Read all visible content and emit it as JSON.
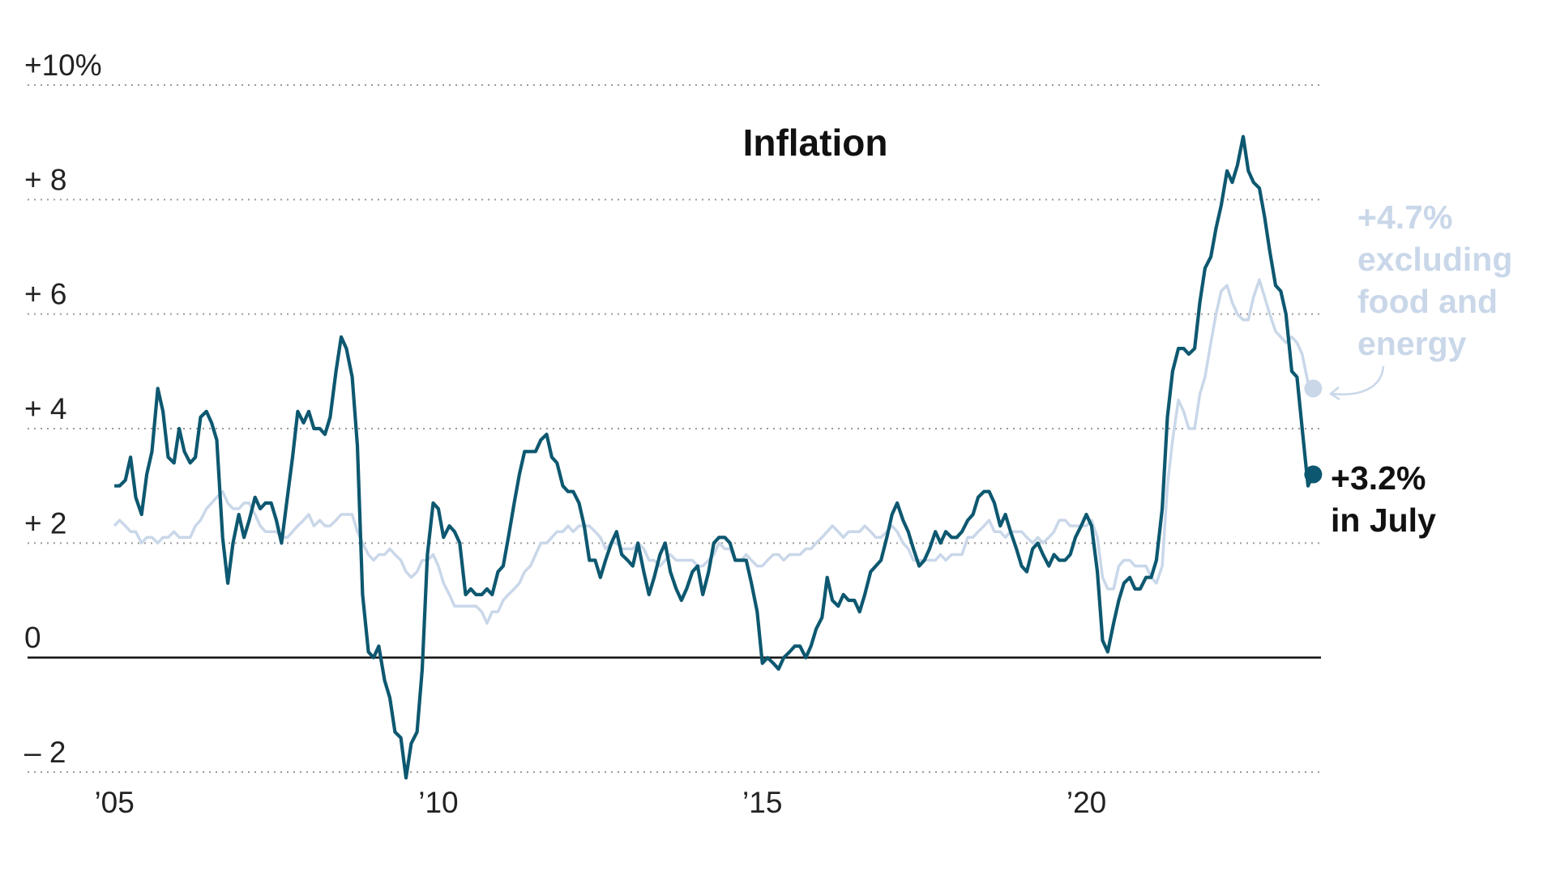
{
  "chart_data": {
    "type": "line",
    "title": "Inflation",
    "xlim": [
      2003.66,
      2023.62
    ],
    "xticks": [
      {
        "value": 2005,
        "label": "’05"
      },
      {
        "value": 2010,
        "label": "’10"
      },
      {
        "value": 2015,
        "label": "’15"
      },
      {
        "value": 2020,
        "label": "’20"
      }
    ],
    "ylim": [
      -2,
      10
    ],
    "yticks": [
      {
        "value": 10,
        "label": "+10%"
      },
      {
        "value": 8,
        "label": "+ 8"
      },
      {
        "value": 6,
        "label": "+ 6"
      },
      {
        "value": 4,
        "label": "+ 4"
      },
      {
        "value": 2,
        "label": "+ 2"
      },
      0,
      {
        "value": -2,
        "label": "– 2"
      }
    ],
    "grid": true,
    "x": [
      2005,
      2005.08,
      2005.17,
      2005.25,
      2005.33,
      2005.42,
      2005.5,
      2005.58,
      2005.67,
      2005.75,
      2005.83,
      2005.92,
      2006,
      2006.08,
      2006.17,
      2006.25,
      2006.33,
      2006.42,
      2006.5,
      2006.58,
      2006.67,
      2006.75,
      2006.83,
      2006.92,
      2007,
      2007.08,
      2007.17,
      2007.25,
      2007.33,
      2007.42,
      2007.5,
      2007.58,
      2007.67,
      2007.75,
      2007.83,
      2007.92,
      2008,
      2008.08,
      2008.17,
      2008.25,
      2008.33,
      2008.42,
      2008.5,
      2008.58,
      2008.67,
      2008.75,
      2008.83,
      2008.92,
      2009,
      2009.08,
      2009.17,
      2009.25,
      2009.33,
      2009.42,
      2009.5,
      2009.58,
      2009.67,
      2009.75,
      2009.83,
      2009.92,
      2010,
      2010.08,
      2010.17,
      2010.25,
      2010.33,
      2010.42,
      2010.5,
      2010.58,
      2010.67,
      2010.75,
      2010.83,
      2010.92,
      2011,
      2011.08,
      2011.17,
      2011.25,
      2011.33,
      2011.42,
      2011.5,
      2011.58,
      2011.67,
      2011.75,
      2011.83,
      2011.92,
      2012,
      2012.08,
      2012.17,
      2012.25,
      2012.33,
      2012.42,
      2012.5,
      2012.58,
      2012.67,
      2012.75,
      2012.83,
      2012.92,
      2013,
      2013.08,
      2013.17,
      2013.25,
      2013.33,
      2013.42,
      2013.5,
      2013.58,
      2013.67,
      2013.75,
      2013.83,
      2013.92,
      2014,
      2014.08,
      2014.17,
      2014.25,
      2014.33,
      2014.42,
      2014.5,
      2014.58,
      2014.67,
      2014.75,
      2014.83,
      2014.92,
      2015,
      2015.08,
      2015.17,
      2015.25,
      2015.33,
      2015.42,
      2015.5,
      2015.58,
      2015.67,
      2015.75,
      2015.83,
      2015.92,
      2016,
      2016.08,
      2016.17,
      2016.25,
      2016.33,
      2016.42,
      2016.5,
      2016.58,
      2016.67,
      2016.75,
      2016.83,
      2016.92,
      2017,
      2017.08,
      2017.17,
      2017.25,
      2017.33,
      2017.42,
      2017.5,
      2017.58,
      2017.67,
      2017.75,
      2017.83,
      2017.92,
      2018,
      2018.08,
      2018.17,
      2018.25,
      2018.33,
      2018.42,
      2018.5,
      2018.58,
      2018.67,
      2018.75,
      2018.83,
      2018.92,
      2019,
      2019.08,
      2019.17,
      2019.25,
      2019.33,
      2019.42,
      2019.5,
      2019.58,
      2019.67,
      2019.75,
      2019.83,
      2019.92,
      2020,
      2020.08,
      2020.17,
      2020.25,
      2020.33,
      2020.42,
      2020.5,
      2020.58,
      2020.67,
      2020.75,
      2020.83,
      2020.92,
      2021,
      2021.08,
      2021.17,
      2021.25,
      2021.33,
      2021.42,
      2021.5,
      2021.58,
      2021.67,
      2021.75,
      2021.83,
      2021.92,
      2022,
      2022.08,
      2022.17,
      2022.25,
      2022.33,
      2022.42,
      2022.5,
      2022.58,
      2022.67,
      2022.75,
      2022.83,
      2022.92,
      2023,
      2023.08,
      2023.17,
      2023.25,
      2023.33,
      2023.42,
      2023.5
    ],
    "series": [
      {
        "color": "#c9d7e9",
        "annotation": [
          "+4.7%",
          "excluding",
          "food and",
          "energy"
        ],
        "values": [
          2.3,
          2.4,
          2.3,
          2.2,
          2.2,
          2.0,
          2.1,
          2.1,
          2.0,
          2.1,
          2.1,
          2.2,
          2.1,
          2.1,
          2.1,
          2.3,
          2.4,
          2.6,
          2.7,
          2.8,
          2.9,
          2.7,
          2.6,
          2.6,
          2.7,
          2.7,
          2.5,
          2.3,
          2.2,
          2.2,
          2.2,
          2.1,
          2.1,
          2.2,
          2.3,
          2.4,
          2.5,
          2.3,
          2.4,
          2.3,
          2.3,
          2.4,
          2.5,
          2.5,
          2.5,
          2.2,
          2.0,
          1.8,
          1.7,
          1.8,
          1.8,
          1.9,
          1.8,
          1.7,
          1.5,
          1.4,
          1.5,
          1.7,
          1.7,
          1.8,
          1.6,
          1.3,
          1.1,
          0.9,
          0.9,
          0.9,
          0.9,
          0.9,
          0.8,
          0.6,
          0.8,
          0.8,
          1.0,
          1.1,
          1.2,
          1.3,
          1.5,
          1.6,
          1.8,
          2.0,
          2.0,
          2.1,
          2.2,
          2.2,
          2.3,
          2.2,
          2.3,
          2.3,
          2.3,
          2.2,
          2.1,
          1.9,
          2.0,
          2.0,
          1.9,
          1.9,
          1.9,
          2.0,
          1.9,
          1.7,
          1.7,
          1.6,
          1.7,
          1.8,
          1.7,
          1.7,
          1.7,
          1.7,
          1.6,
          1.6,
          1.7,
          1.8,
          2.0,
          1.9,
          1.9,
          1.7,
          1.7,
          1.8,
          1.7,
          1.6,
          1.6,
          1.7,
          1.8,
          1.8,
          1.7,
          1.8,
          1.8,
          1.8,
          1.9,
          1.9,
          2.0,
          2.1,
          2.2,
          2.3,
          2.2,
          2.1,
          2.2,
          2.2,
          2.2,
          2.3,
          2.2,
          2.1,
          2.1,
          2.2,
          2.3,
          2.2,
          2.0,
          1.9,
          1.7,
          1.7,
          1.7,
          1.7,
          1.7,
          1.8,
          1.7,
          1.8,
          1.8,
          1.8,
          2.1,
          2.1,
          2.2,
          2.3,
          2.4,
          2.2,
          2.2,
          2.1,
          2.2,
          2.2,
          2.2,
          2.1,
          2.0,
          2.1,
          2.0,
          2.1,
          2.2,
          2.4,
          2.4,
          2.3,
          2.3,
          2.3,
          2.3,
          2.4,
          2.1,
          1.4,
          1.2,
          1.2,
          1.6,
          1.7,
          1.7,
          1.6,
          1.6,
          1.6,
          1.4,
          1.3,
          1.6,
          3.0,
          3.8,
          4.5,
          4.3,
          4.0,
          4.0,
          4.6,
          4.9,
          5.5,
          6.0,
          6.4,
          6.5,
          6.2,
          6.0,
          5.9,
          5.9,
          6.3,
          6.6,
          6.3,
          6.0,
          5.7,
          5.6,
          5.5,
          5.6,
          5.5,
          5.3,
          4.8,
          4.7
        ]
      },
      {
        "color": "#0d5870",
        "annotation": [
          "+3.2%",
          "in July"
        ],
        "values": [
          3.0,
          3.0,
          3.1,
          3.5,
          2.8,
          2.5,
          3.2,
          3.6,
          4.7,
          4.3,
          3.5,
          3.4,
          4.0,
          3.6,
          3.4,
          3.5,
          4.2,
          4.3,
          4.1,
          3.8,
          2.1,
          1.3,
          2.0,
          2.5,
          2.1,
          2.4,
          2.8,
          2.6,
          2.7,
          2.7,
          2.4,
          2.0,
          2.8,
          3.5,
          4.3,
          4.1,
          4.3,
          4.0,
          4.0,
          3.9,
          4.2,
          5.0,
          5.6,
          5.4,
          4.9,
          3.7,
          1.1,
          0.1,
          0.0,
          0.2,
          -0.4,
          -0.7,
          -1.3,
          -1.4,
          -2.1,
          -1.5,
          -1.3,
          -0.2,
          1.8,
          2.7,
          2.6,
          2.1,
          2.3,
          2.2,
          2.0,
          1.1,
          1.2,
          1.1,
          1.1,
          1.2,
          1.1,
          1.5,
          1.6,
          2.1,
          2.7,
          3.2,
          3.6,
          3.6,
          3.6,
          3.8,
          3.9,
          3.5,
          3.4,
          3.0,
          2.9,
          2.9,
          2.7,
          2.3,
          1.7,
          1.7,
          1.4,
          1.7,
          2.0,
          2.2,
          1.8,
          1.7,
          1.6,
          2.0,
          1.5,
          1.1,
          1.4,
          1.8,
          2.0,
          1.5,
          1.2,
          1.0,
          1.2,
          1.5,
          1.6,
          1.1,
          1.5,
          2.0,
          2.1,
          2.1,
          2.0,
          1.7,
          1.7,
          1.7,
          1.3,
          0.8,
          -0.1,
          0.0,
          -0.1,
          -0.2,
          0.0,
          0.1,
          0.2,
          0.2,
          0.0,
          0.2,
          0.5,
          0.7,
          1.4,
          1.0,
          0.9,
          1.1,
          1.0,
          1.0,
          0.8,
          1.1,
          1.5,
          1.6,
          1.7,
          2.1,
          2.5,
          2.7,
          2.4,
          2.2,
          1.9,
          1.6,
          1.7,
          1.9,
          2.2,
          2.0,
          2.2,
          2.1,
          2.1,
          2.2,
          2.4,
          2.5,
          2.8,
          2.9,
          2.9,
          2.7,
          2.3,
          2.5,
          2.2,
          1.9,
          1.6,
          1.5,
          1.9,
          2.0,
          1.8,
          1.6,
          1.8,
          1.7,
          1.7,
          1.8,
          2.1,
          2.3,
          2.5,
          2.3,
          1.5,
          0.3,
          0.1,
          0.6,
          1.0,
          1.3,
          1.4,
          1.2,
          1.2,
          1.4,
          1.4,
          1.7,
          2.6,
          4.2,
          5.0,
          5.4,
          5.4,
          5.3,
          5.4,
          6.2,
          6.8,
          7.0,
          7.5,
          7.9,
          8.5,
          8.3,
          8.6,
          9.1,
          8.5,
          8.3,
          8.2,
          7.7,
          7.1,
          6.5,
          6.4,
          6.0,
          5.0,
          4.9,
          4.0,
          3.0,
          3.2
        ]
      }
    ]
  }
}
